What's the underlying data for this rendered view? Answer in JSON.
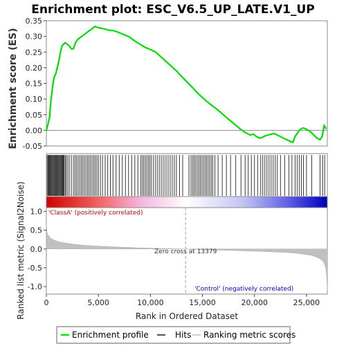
{
  "chart_data": {
    "type": "line",
    "title": "Enrichment plot: ESC_V6.5_UP_LATE.V1_UP",
    "es_panel": {
      "ylabel": "Enrichment score (ES)",
      "ylim": [
        -0.05,
        0.35
      ],
      "yticks": [
        "-0.05",
        "0.00",
        "0.05",
        "0.10",
        "0.15",
        "0.20",
        "0.25",
        "0.30",
        "0.35"
      ],
      "ytick_values": [
        -0.05,
        0.0,
        0.05,
        0.1,
        0.15,
        0.2,
        0.25,
        0.3,
        0.35
      ],
      "series": [
        {
          "name": "Enrichment profile",
          "color": "#00ee00",
          "x": [
            0,
            150,
            300,
            450,
            600,
            750,
            900,
            1050,
            1200,
            1350,
            1500,
            1650,
            1800,
            2000,
            2200,
            2400,
            2600,
            2800,
            3000,
            3200,
            3400,
            3600,
            3800,
            4000,
            4200,
            4400,
            4600,
            4700,
            4800,
            5000,
            5300,
            5600,
            6000,
            6500,
            7000,
            7500,
            8000,
            8500,
            9000,
            9500,
            10000,
            10500,
            11000,
            11500,
            12000,
            12500,
            13000,
            13500,
            14000,
            14500,
            15000,
            15500,
            16000,
            16500,
            17000,
            17500,
            18000,
            18500,
            19000,
            19300,
            19600,
            19900,
            20200,
            20500,
            20800,
            21000,
            21300,
            21600,
            21900,
            22200,
            22500,
            22800,
            23100,
            23400,
            23700,
            23900,
            24100,
            24300,
            24500,
            24700,
            24900,
            25100,
            25400,
            25700,
            26000,
            26300,
            26500,
            26700,
            26900
          ],
          "values": [
            0.0,
            0.02,
            0.04,
            0.1,
            0.14,
            0.17,
            0.18,
            0.2,
            0.22,
            0.25,
            0.27,
            0.275,
            0.28,
            0.275,
            0.27,
            0.26,
            0.26,
            0.28,
            0.29,
            0.295,
            0.3,
            0.305,
            0.31,
            0.315,
            0.32,
            0.325,
            0.33,
            0.332,
            0.33,
            0.328,
            0.326,
            0.324,
            0.32,
            0.318,
            0.312,
            0.305,
            0.298,
            0.285,
            0.275,
            0.265,
            0.258,
            0.25,
            0.235,
            0.22,
            0.205,
            0.19,
            0.172,
            0.155,
            0.138,
            0.12,
            0.105,
            0.09,
            0.077,
            0.065,
            0.05,
            0.036,
            0.022,
            0.008,
            -0.005,
            -0.01,
            -0.015,
            -0.012,
            -0.02,
            -0.025,
            -0.022,
            -0.018,
            -0.015,
            -0.012,
            -0.01,
            -0.015,
            -0.02,
            -0.025,
            -0.03,
            -0.035,
            -0.038,
            -0.02,
            -0.01,
            0.0,
            0.005,
            0.008,
            0.005,
            0.002,
            -0.005,
            -0.015,
            -0.025,
            -0.03,
            -0.02,
            0.015,
            0.005
          ]
        }
      ],
      "zero_line": 0.0
    },
    "hits_panel": {
      "legend_name": "Hits",
      "hit_ranks": [
        80,
        160,
        230,
        300,
        370,
        440,
        510,
        580,
        650,
        720,
        790,
        860,
        930,
        1000,
        1070,
        1140,
        1210,
        1280,
        1350,
        1420,
        1490,
        1560,
        1630,
        1700,
        1800,
        1900,
        2050,
        2200,
        2400,
        2600,
        2750,
        2900,
        3050,
        3200,
        3350,
        3500,
        3650,
        3800,
        3950,
        4100,
        4250,
        4400,
        4550,
        4700,
        4850,
        5000,
        5200,
        5400,
        5650,
        5900,
        6150,
        6400,
        6700,
        7000,
        7300,
        7600,
        7900,
        8200,
        8500,
        8800,
        9050,
        9200,
        9350,
        9500,
        9650,
        9800,
        9950,
        10100,
        10300,
        10500,
        10700,
        10900,
        11100,
        11300,
        11500,
        11700,
        11900,
        12100,
        12300,
        12500,
        12800,
        13100,
        13700,
        13900,
        14050,
        14200,
        14350,
        14500,
        14650,
        14800,
        14950,
        15100,
        15250,
        15400,
        15550,
        15700,
        15850,
        16000,
        16200,
        16500,
        16900,
        17300,
        17700,
        18200,
        18700,
        19100,
        19400,
        19700,
        20000,
        20300,
        20600,
        20800,
        21000,
        21200,
        21400,
        21600,
        21800,
        22000,
        22200,
        22500,
        22900,
        23300,
        23600,
        23900,
        24100,
        24300,
        24500,
        24700,
        25000,
        25500,
        26300,
        26550,
        26750
      ]
    },
    "rank_panel": {
      "ylabel": "Ranked list metric (Signal2Noise)",
      "xlabel": "Rank in Ordered Dataset",
      "ylim": [
        -1.2,
        1.1
      ],
      "yticks": [
        "1.0",
        "0.5",
        "0.0",
        "-0.5",
        "-1.0"
      ],
      "ytick_values": [
        1.0,
        0.5,
        0.0,
        -0.5,
        -1.0
      ],
      "xlim": [
        0,
        27000
      ],
      "xticks": [
        "0",
        "5,000",
        "10,000",
        "15,000",
        "20,000",
        "25,000"
      ],
      "xtick_values": [
        0,
        5000,
        10000,
        15000,
        20000,
        25000
      ],
      "metric_x": [
        0,
        50,
        150,
        300,
        500,
        800,
        1200,
        1800,
        2500,
        3500,
        5000,
        7000,
        9000,
        11000,
        13379,
        15500,
        18000,
        20000,
        22000,
        23500,
        24500,
        25300,
        25800,
        26200,
        26500,
        26700,
        26850,
        26950,
        27000
      ],
      "metric_values": [
        0.72,
        0.45,
        0.38,
        0.32,
        0.27,
        0.23,
        0.19,
        0.16,
        0.13,
        0.1,
        0.075,
        0.05,
        0.03,
        0.015,
        0.0,
        -0.02,
        -0.04,
        -0.06,
        -0.08,
        -0.1,
        -0.13,
        -0.16,
        -0.2,
        -0.25,
        -0.3,
        -0.38,
        -0.5,
        -0.75,
        -1.12
      ],
      "zero_cross_label": "Zero cross at 13379",
      "zero_cross_x": 13379,
      "pos_label": "'ClassA' (positively correlated)",
      "neg_label": "'Control' (negatively correlated)",
      "pos_color": "#cc0000",
      "neg_color": "#0000cc"
    },
    "legend": [
      {
        "label": "Enrichment profile",
        "color": "#00ee00"
      },
      {
        "label": "Hits",
        "color": "#555555"
      },
      {
        "label": "Ranking metric scores",
        "color": "#cccccc"
      }
    ]
  }
}
